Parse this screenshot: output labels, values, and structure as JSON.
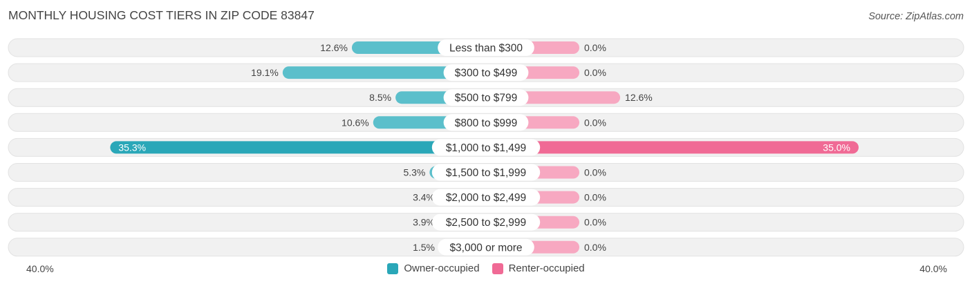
{
  "title": "MONTHLY HOUSING COST TIERS IN ZIP CODE 83847",
  "source": "Source: ZipAtlas.com",
  "colors": {
    "owner": "#5BBFCB",
    "owner_strong": "#2AA7B8",
    "renter": "#F7A8C1",
    "renter_strong": "#F06A95",
    "row_bg": "#F1F1F1"
  },
  "axis": {
    "left_label": "40.0%",
    "right_label": "40.0%"
  },
  "legend": {
    "owner_label": "Owner-occupied",
    "renter_label": "Renter-occupied"
  },
  "chart_data": {
    "type": "bar",
    "orientation": "horizontal-diverging",
    "categories": [
      "Less than $300",
      "$300 to $499",
      "$500 to $799",
      "$800 to $999",
      "$1,000 to $1,499",
      "$1,500 to $1,999",
      "$2,000 to $2,499",
      "$2,500 to $2,999",
      "$3,000 or more"
    ],
    "series": [
      {
        "name": "Owner-occupied",
        "values": [
          12.6,
          19.1,
          8.5,
          10.6,
          35.3,
          5.3,
          3.4,
          3.9,
          1.5
        ],
        "labels": [
          "12.6%",
          "19.1%",
          "8.5%",
          "10.6%",
          "35.3%",
          "5.3%",
          "3.4%",
          "3.9%",
          "1.5%"
        ]
      },
      {
        "name": "Renter-occupied",
        "values": [
          0.0,
          0.0,
          12.6,
          0.0,
          35.0,
          0.0,
          0.0,
          0.0,
          0.0
        ],
        "labels": [
          "0.0%",
          "0.0%",
          "12.6%",
          "0.0%",
          "35.0%",
          "0.0%",
          "0.0%",
          "0.0%",
          "0.0%"
        ]
      }
    ],
    "xlim": [
      -40,
      40
    ],
    "legend_position": "bottom-center"
  }
}
